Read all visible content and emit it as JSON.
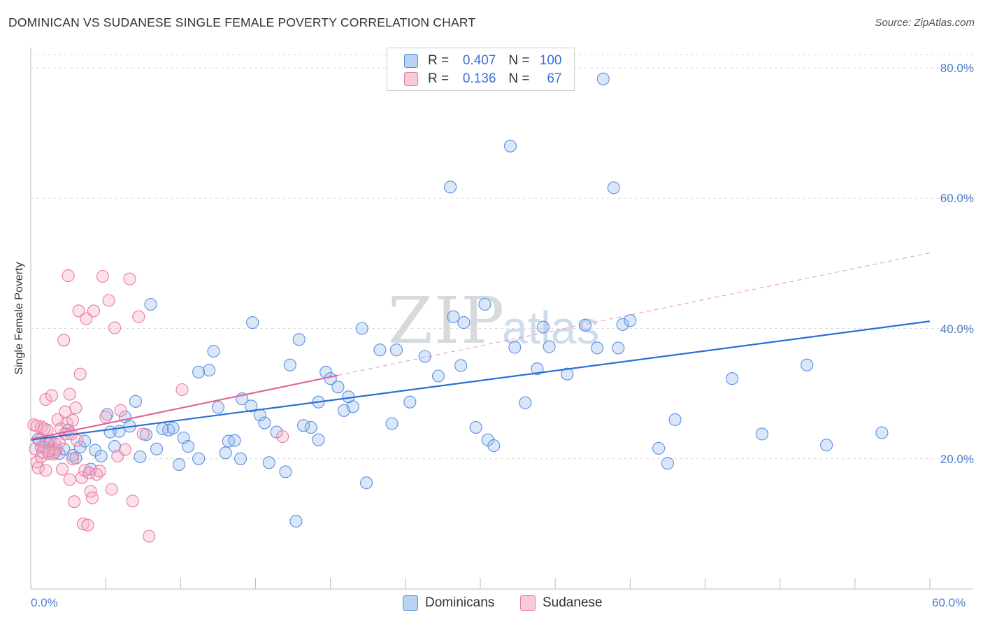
{
  "title": "DOMINICAN VS SUDANESE SINGLE FEMALE POVERTY CORRELATION CHART",
  "source": "Source: ZipAtlas.com",
  "watermark": {
    "main": "ZIP",
    "sub": "atlas"
  },
  "colors": {
    "blue": "#5b8fde",
    "pink": "#e77ba0",
    "blue_line": "#2b6fd6",
    "pink_line": "#e0689a",
    "grid": "#dcdcdc",
    "tick_text": "#4a7dc8"
  },
  "legend_top": {
    "rows": [
      {
        "r_label": "R =",
        "r_value": "0.407",
        "n_label": "N =",
        "n_value": "100",
        "color": "blue"
      },
      {
        "r_label": "R =",
        "r_value": "0.136",
        "n_label": "N =",
        "n_value": "67",
        "color": "pink"
      }
    ]
  },
  "legend_bottom": [
    {
      "label": "Dominicans",
      "color": "blue"
    },
    {
      "label": "Sudanese",
      "color": "pink"
    }
  ],
  "chart_data": {
    "type": "scatter",
    "title": "DOMINICAN VS SUDANESE SINGLE FEMALE POVERTY CORRELATION CHART",
    "xlabel": "",
    "ylabel": "Single Female Poverty",
    "xlim": [
      0,
      60
    ],
    "ylim": [
      0,
      80
    ],
    "x_ticks": [
      "0.0%",
      "60.0%"
    ],
    "y_ticks": [
      {
        "value": 20,
        "label": "20.0%"
      },
      {
        "value": 40,
        "label": "40.0%"
      },
      {
        "value": 60,
        "label": "60.0%"
      },
      {
        "value": 80,
        "label": "80.0%"
      }
    ],
    "grid": true,
    "legend_placement": "bottom",
    "series": [
      {
        "name": "Dominicans",
        "color": "blue",
        "r": 0.407,
        "n": 100,
        "trend": {
          "x": [
            0,
            60
          ],
          "y": [
            22.9,
            41.1
          ],
          "style": "solid"
        },
        "points": [
          [
            0.5,
            23.0
          ],
          [
            1.0,
            22.5
          ],
          [
            1.5,
            21.5
          ],
          [
            1.9,
            20.8
          ],
          [
            2.2,
            21.5
          ],
          [
            2.5,
            24.4
          ],
          [
            2.8,
            20.5
          ],
          [
            3.3,
            21.8
          ],
          [
            3.6,
            22.7
          ],
          [
            4.0,
            18.4
          ],
          [
            4.3,
            21.3
          ],
          [
            4.7,
            20.4
          ],
          [
            5.1,
            26.8
          ],
          [
            5.3,
            24.1
          ],
          [
            5.6,
            21.9
          ],
          [
            5.9,
            24.2
          ],
          [
            6.3,
            26.4
          ],
          [
            6.6,
            25.0
          ],
          [
            7.0,
            28.8
          ],
          [
            7.3,
            20.3
          ],
          [
            7.7,
            23.7
          ],
          [
            8.0,
            43.7
          ],
          [
            8.4,
            21.5
          ],
          [
            8.8,
            24.6
          ],
          [
            9.2,
            24.4
          ],
          [
            9.5,
            24.7
          ],
          [
            9.9,
            19.1
          ],
          [
            10.2,
            23.2
          ],
          [
            10.5,
            21.9
          ],
          [
            11.2,
            20.0
          ],
          [
            11.2,
            33.3
          ],
          [
            11.9,
            33.6
          ],
          [
            12.2,
            36.5
          ],
          [
            12.5,
            27.9
          ],
          [
            13.0,
            20.9
          ],
          [
            13.2,
            22.7
          ],
          [
            13.6,
            22.8
          ],
          [
            14.0,
            20.0
          ],
          [
            14.1,
            29.2
          ],
          [
            14.7,
            28.1
          ],
          [
            14.8,
            40.9
          ],
          [
            15.3,
            26.7
          ],
          [
            15.6,
            25.5
          ],
          [
            15.9,
            19.4
          ],
          [
            16.4,
            24.1
          ],
          [
            17.0,
            18.0
          ],
          [
            17.3,
            34.4
          ],
          [
            17.7,
            10.4
          ],
          [
            17.9,
            38.3
          ],
          [
            18.2,
            25.1
          ],
          [
            18.7,
            24.8
          ],
          [
            19.2,
            22.9
          ],
          [
            19.2,
            28.7
          ],
          [
            19.7,
            33.3
          ],
          [
            20.0,
            32.3
          ],
          [
            20.5,
            31.0
          ],
          [
            20.9,
            27.4
          ],
          [
            21.2,
            29.5
          ],
          [
            21.5,
            28.0
          ],
          [
            22.1,
            40.0
          ],
          [
            22.4,
            16.3
          ],
          [
            23.3,
            36.7
          ],
          [
            24.1,
            25.4
          ],
          [
            24.4,
            36.7
          ],
          [
            25.3,
            28.7
          ],
          [
            26.3,
            35.7
          ],
          [
            27.2,
            32.7
          ],
          [
            28.2,
            41.8
          ],
          [
            28.7,
            34.3
          ],
          [
            28.9,
            40.9
          ],
          [
            29.7,
            24.8
          ],
          [
            30.3,
            43.7
          ],
          [
            30.5,
            22.9
          ],
          [
            30.9,
            22.0
          ],
          [
            32.0,
            68.0
          ],
          [
            32.3,
            37.1
          ],
          [
            33.0,
            28.6
          ],
          [
            33.8,
            33.8
          ],
          [
            34.2,
            40.2
          ],
          [
            34.6,
            37.2
          ],
          [
            37.0,
            40.5
          ],
          [
            37.8,
            37.0
          ],
          [
            38.2,
            78.3
          ],
          [
            38.9,
            61.6
          ],
          [
            39.2,
            37.0
          ],
          [
            39.5,
            40.6
          ],
          [
            40.0,
            41.2
          ],
          [
            41.9,
            21.6
          ],
          [
            42.5,
            19.3
          ],
          [
            43.0,
            26.0
          ],
          [
            46.8,
            32.3
          ],
          [
            48.8,
            23.8
          ],
          [
            51.8,
            34.4
          ],
          [
            53.1,
            22.1
          ],
          [
            56.8,
            24.0
          ],
          [
            1.2,
            22.3
          ],
          [
            0.7,
            21.8
          ],
          [
            3.0,
            20.1
          ],
          [
            28.0,
            61.7
          ],
          [
            35.8,
            33.0
          ]
        ]
      },
      {
        "name": "Sudanese",
        "color": "pink",
        "r": 0.136,
        "n": 67,
        "trend": {
          "x": [
            0,
            20.5
          ],
          "y": [
            23.0,
            32.8
          ],
          "style": "solid"
        },
        "trend_extension": {
          "x": [
            20.5,
            60
          ],
          "y": [
            32.8,
            51.6
          ],
          "style": "dashed"
        },
        "points": [
          [
            0.2,
            25.2
          ],
          [
            0.3,
            21.5
          ],
          [
            0.4,
            19.5
          ],
          [
            0.5,
            18.6
          ],
          [
            0.6,
            22.8
          ],
          [
            0.7,
            24.9
          ],
          [
            0.7,
            20.3
          ],
          [
            0.8,
            21.0
          ],
          [
            0.9,
            21.8
          ],
          [
            1.0,
            18.2
          ],
          [
            1.0,
            29.1
          ],
          [
            1.1,
            24.4
          ],
          [
            1.2,
            20.8
          ],
          [
            1.3,
            22.8
          ],
          [
            1.4,
            29.7
          ],
          [
            1.5,
            20.7
          ],
          [
            1.6,
            22.3
          ],
          [
            1.7,
            21.4
          ],
          [
            1.8,
            26.0
          ],
          [
            1.9,
            22.5
          ],
          [
            2.0,
            24.6
          ],
          [
            2.1,
            18.4
          ],
          [
            2.2,
            38.2
          ],
          [
            2.3,
            23.8
          ],
          [
            2.4,
            25.5
          ],
          [
            2.5,
            48.1
          ],
          [
            2.6,
            29.9
          ],
          [
            2.6,
            16.8
          ],
          [
            2.7,
            23.8
          ],
          [
            2.8,
            20.0
          ],
          [
            2.9,
            13.4
          ],
          [
            3.0,
            27.8
          ],
          [
            3.1,
            22.8
          ],
          [
            3.2,
            42.7
          ],
          [
            3.3,
            33.0
          ],
          [
            3.4,
            17.1
          ],
          [
            3.5,
            10.0
          ],
          [
            3.6,
            18.2
          ],
          [
            3.7,
            41.5
          ],
          [
            3.8,
            9.8
          ],
          [
            3.9,
            17.8
          ],
          [
            4.0,
            15.0
          ],
          [
            4.1,
            14.0
          ],
          [
            4.2,
            42.7
          ],
          [
            4.4,
            17.6
          ],
          [
            4.6,
            18.1
          ],
          [
            4.8,
            48.0
          ],
          [
            5.0,
            26.4
          ],
          [
            5.2,
            44.3
          ],
          [
            5.4,
            15.3
          ],
          [
            5.6,
            40.1
          ],
          [
            5.8,
            20.4
          ],
          [
            6.0,
            27.4
          ],
          [
            6.3,
            21.4
          ],
          [
            6.6,
            47.6
          ],
          [
            6.8,
            13.5
          ],
          [
            7.2,
            41.8
          ],
          [
            7.5,
            23.8
          ],
          [
            7.9,
            8.1
          ],
          [
            10.1,
            30.6
          ],
          [
            16.8,
            23.4
          ],
          [
            0.4,
            25.0
          ],
          [
            1.6,
            21.0
          ],
          [
            0.9,
            24.6
          ],
          [
            2.3,
            27.2
          ],
          [
            1.2,
            21.2
          ],
          [
            2.8,
            25.9
          ]
        ]
      }
    ]
  }
}
